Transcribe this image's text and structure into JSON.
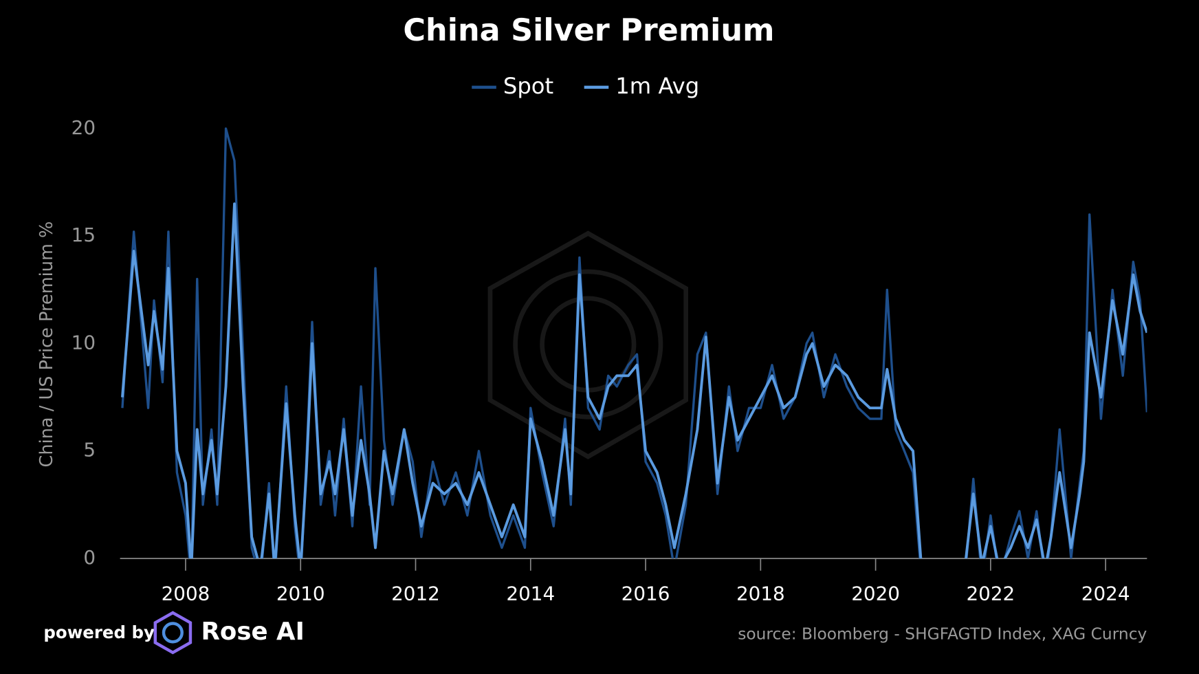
{
  "chart_data": {
    "type": "line",
    "title": "China Silver Premium",
    "ylabel": "China / US Price Premium %",
    "powered_by": "powered by",
    "brand": "Rose AI",
    "source": "source: Bloomberg  -  SHGFAGTD Index, XAG Curncy",
    "xlim": [
      2006.86,
      2024.72
    ],
    "ylim": [
      0,
      20
    ],
    "xticks": [
      2008,
      2010,
      2012,
      2014,
      2016,
      2018,
      2020,
      2022,
      2024
    ],
    "yticks": [
      0,
      5,
      10,
      15,
      20
    ],
    "x": [
      2006.9,
      2007.1,
      2007.35,
      2007.45,
      2007.6,
      2007.7,
      2007.85,
      2008.0,
      2008.1,
      2008.2,
      2008.3,
      2008.45,
      2008.55,
      2008.7,
      2008.85,
      2009.0,
      2009.15,
      2009.3,
      2009.45,
      2009.55,
      2009.75,
      2009.9,
      2010.0,
      2010.1,
      2010.2,
      2010.35,
      2010.5,
      2010.6,
      2010.75,
      2010.9,
      2011.05,
      2011.2,
      2011.3,
      2011.45,
      2011.6,
      2011.8,
      2011.95,
      2012.1,
      2012.3,
      2012.5,
      2012.7,
      2012.9,
      2013.1,
      2013.3,
      2013.5,
      2013.7,
      2013.9,
      2014.0,
      2014.2,
      2014.4,
      2014.6,
      2014.7,
      2014.85,
      2015.0,
      2015.2,
      2015.35,
      2015.5,
      2015.7,
      2015.85,
      2016.0,
      2016.2,
      2016.35,
      2016.5,
      2016.7,
      2016.9,
      2017.05,
      2017.25,
      2017.45,
      2017.6,
      2017.8,
      2018.0,
      2018.2,
      2018.4,
      2018.6,
      2018.8,
      2018.9,
      2019.1,
      2019.3,
      2019.5,
      2019.7,
      2019.9,
      2020.1,
      2020.2,
      2020.35,
      2020.5,
      2020.65,
      2020.8,
      2021.0,
      2021.3,
      2021.55,
      2021.7,
      2021.85,
      2022.0,
      2022.15,
      2022.35,
      2022.5,
      2022.65,
      2022.8,
      2022.95,
      2023.05,
      2023.2,
      2023.4,
      2023.55,
      2023.62,
      2023.72,
      2023.92,
      2024.12,
      2024.3,
      2024.48,
      2024.6,
      2024.72
    ],
    "series": [
      {
        "name": "Spot",
        "color": "#1e4f8c",
        "values": [
          7,
          15.2,
          7,
          12,
          8.2,
          15.2,
          4,
          2,
          -1,
          13,
          2.5,
          6,
          2.5,
          20,
          18.5,
          9.5,
          0.5,
          -1,
          3.5,
          -1,
          8,
          1.5,
          -1,
          4.5,
          11,
          2.5,
          5,
          2,
          6.5,
          1.5,
          8,
          2.5,
          13.5,
          5.5,
          2.5,
          6,
          4.5,
          1,
          4.5,
          2.5,
          4,
          2,
          5,
          2,
          0.5,
          2,
          0.5,
          7,
          4,
          1.5,
          6.5,
          2.5,
          14,
          7,
          6,
          8.5,
          8,
          9,
          9.5,
          4.5,
          3.5,
          2,
          -0.5,
          2.5,
          9.5,
          10.5,
          3,
          8,
          5,
          7,
          7,
          9,
          6.5,
          7.5,
          10,
          10.5,
          7.5,
          9.5,
          8,
          7,
          6.5,
          6.5,
          12.5,
          6,
          5,
          4,
          -1,
          null,
          null,
          -1,
          3.7,
          -1,
          2,
          -1,
          1,
          2.2,
          0,
          2.2,
          -1,
          1,
          6,
          0,
          3.5,
          5,
          16,
          6.5,
          12.5,
          8.5,
          13.8,
          12,
          6.8
        ]
      },
      {
        "name": "1m Avg",
        "color": "#5b9be0",
        "values": [
          7.5,
          14.3,
          9,
          11.5,
          8.8,
          13.5,
          5,
          3.5,
          -0.5,
          6,
          3,
          5.5,
          3,
          8,
          16.5,
          8,
          1,
          -0.5,
          3,
          -0.5,
          7.2,
          2,
          -0.5,
          4,
          10,
          3,
          4.5,
          3,
          6,
          2,
          5.5,
          3,
          0.5,
          5,
          3,
          6,
          3.5,
          1.5,
          3.5,
          3,
          3.5,
          2.5,
          4,
          2.5,
          1,
          2.5,
          1,
          6.5,
          4.5,
          2,
          6,
          3,
          13.2,
          7.5,
          6.5,
          8,
          8.5,
          8.5,
          9,
          5,
          4,
          2.5,
          0.5,
          3,
          6,
          10.3,
          3.5,
          7.5,
          5.5,
          6.5,
          7.5,
          8.5,
          7,
          7.5,
          9.5,
          10,
          8,
          9,
          8.5,
          7.5,
          7,
          7,
          8.8,
          6.5,
          5.5,
          5,
          -0.5,
          null,
          null,
          -0.5,
          3,
          -0.3,
          1.5,
          -0.5,
          0.5,
          1.5,
          0.5,
          1.8,
          -0.5,
          1,
          4,
          0.5,
          3,
          4.5,
          10.5,
          7.5,
          12,
          9.5,
          13.2,
          11.5,
          10.5
        ]
      }
    ]
  }
}
